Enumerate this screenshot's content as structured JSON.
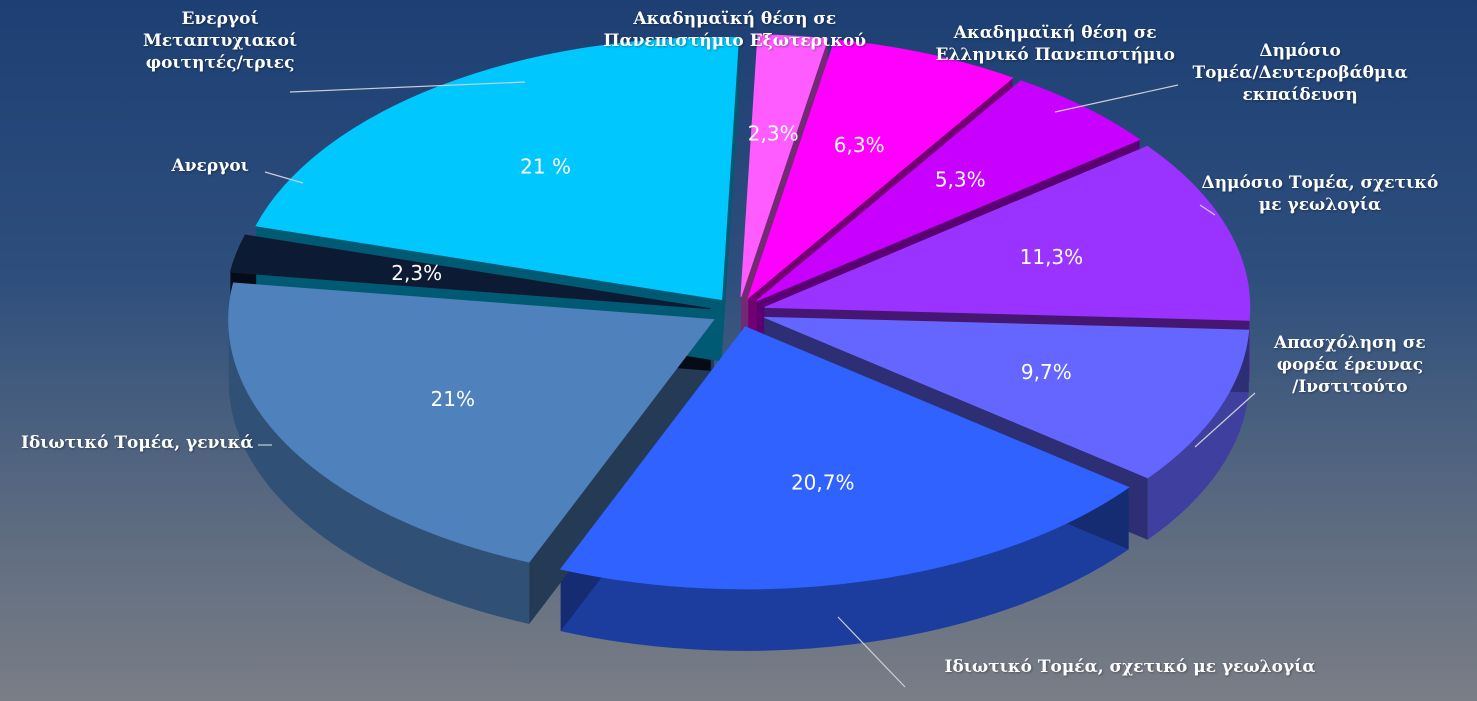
{
  "chart_data": {
    "type": "pie",
    "style": "3d-exploded",
    "categories": [
      "Ακαδημαϊκή θέση σε Πανεπιστήμιο Εξωτερικού",
      "Ακαδημαϊκή θέση σε Ελληνικό Πανεπιστήμιο",
      "Δημόσιο Τομέα/Δευτεροβάθμια εκπαίδευση",
      "Δημόσιο Τομέα, σχετικό με γεωλογία",
      "Απασχόληση σε φορέα έρευνας /Ινστιτούτο",
      "Ιδιωτικό Τομέα, σχετικό με γεωλογία",
      "Ιδιωτικό Τομέα, γενικά",
      "Ανεργοι",
      "Ενεργοί Μεταπτυχιακοί φοιτητές/τριες"
    ],
    "values": [
      2.3,
      6.3,
      5.3,
      11.3,
      9.7,
      20.7,
      21,
      2.3,
      21
    ],
    "data_labels": [
      "2,3%",
      "6,3%",
      "5,3%",
      "11,3%",
      "9,7%",
      "20,7%",
      "21%",
      "2,3%",
      "21 %"
    ],
    "colors": [
      "#ff5cff",
      "#ff00ff",
      "#c800ff",
      "#9a33ff",
      "#6466ff",
      "#2f62ff",
      "#4f81bd",
      "#0d1a33",
      "#00c8ff"
    ],
    "category_label_lines": [
      [
        "Ακαδημαϊκή θέση σε",
        "Πανεπιστήμιο Εξωτερικού"
      ],
      [
        "Ακαδημαϊκή θέση σε",
        "Ελληνικό Πανεπιστήμιο"
      ],
      [
        "Δημόσιο",
        "Τομέα/Δευτεροβάθμια",
        "εκπαίδευση"
      ],
      [
        "Δημόσιο Τομέα, σχετικό",
        "με γεωλογία"
      ],
      [
        "Απασχόληση σε",
        "φορέα έρευνας",
        "/Ινστιτούτο"
      ],
      [
        "Ιδιωτικό Τομέα, σχετικό με γεωλογία"
      ],
      [
        "Ιδιωτικό Τομέα, γενικά"
      ],
      [
        "Ανεργοι"
      ],
      [
        "Ενεργοί",
        "Μεταπτυχιακοί",
        "φοιτητές/τριες"
      ]
    ],
    "legend": "none"
  }
}
